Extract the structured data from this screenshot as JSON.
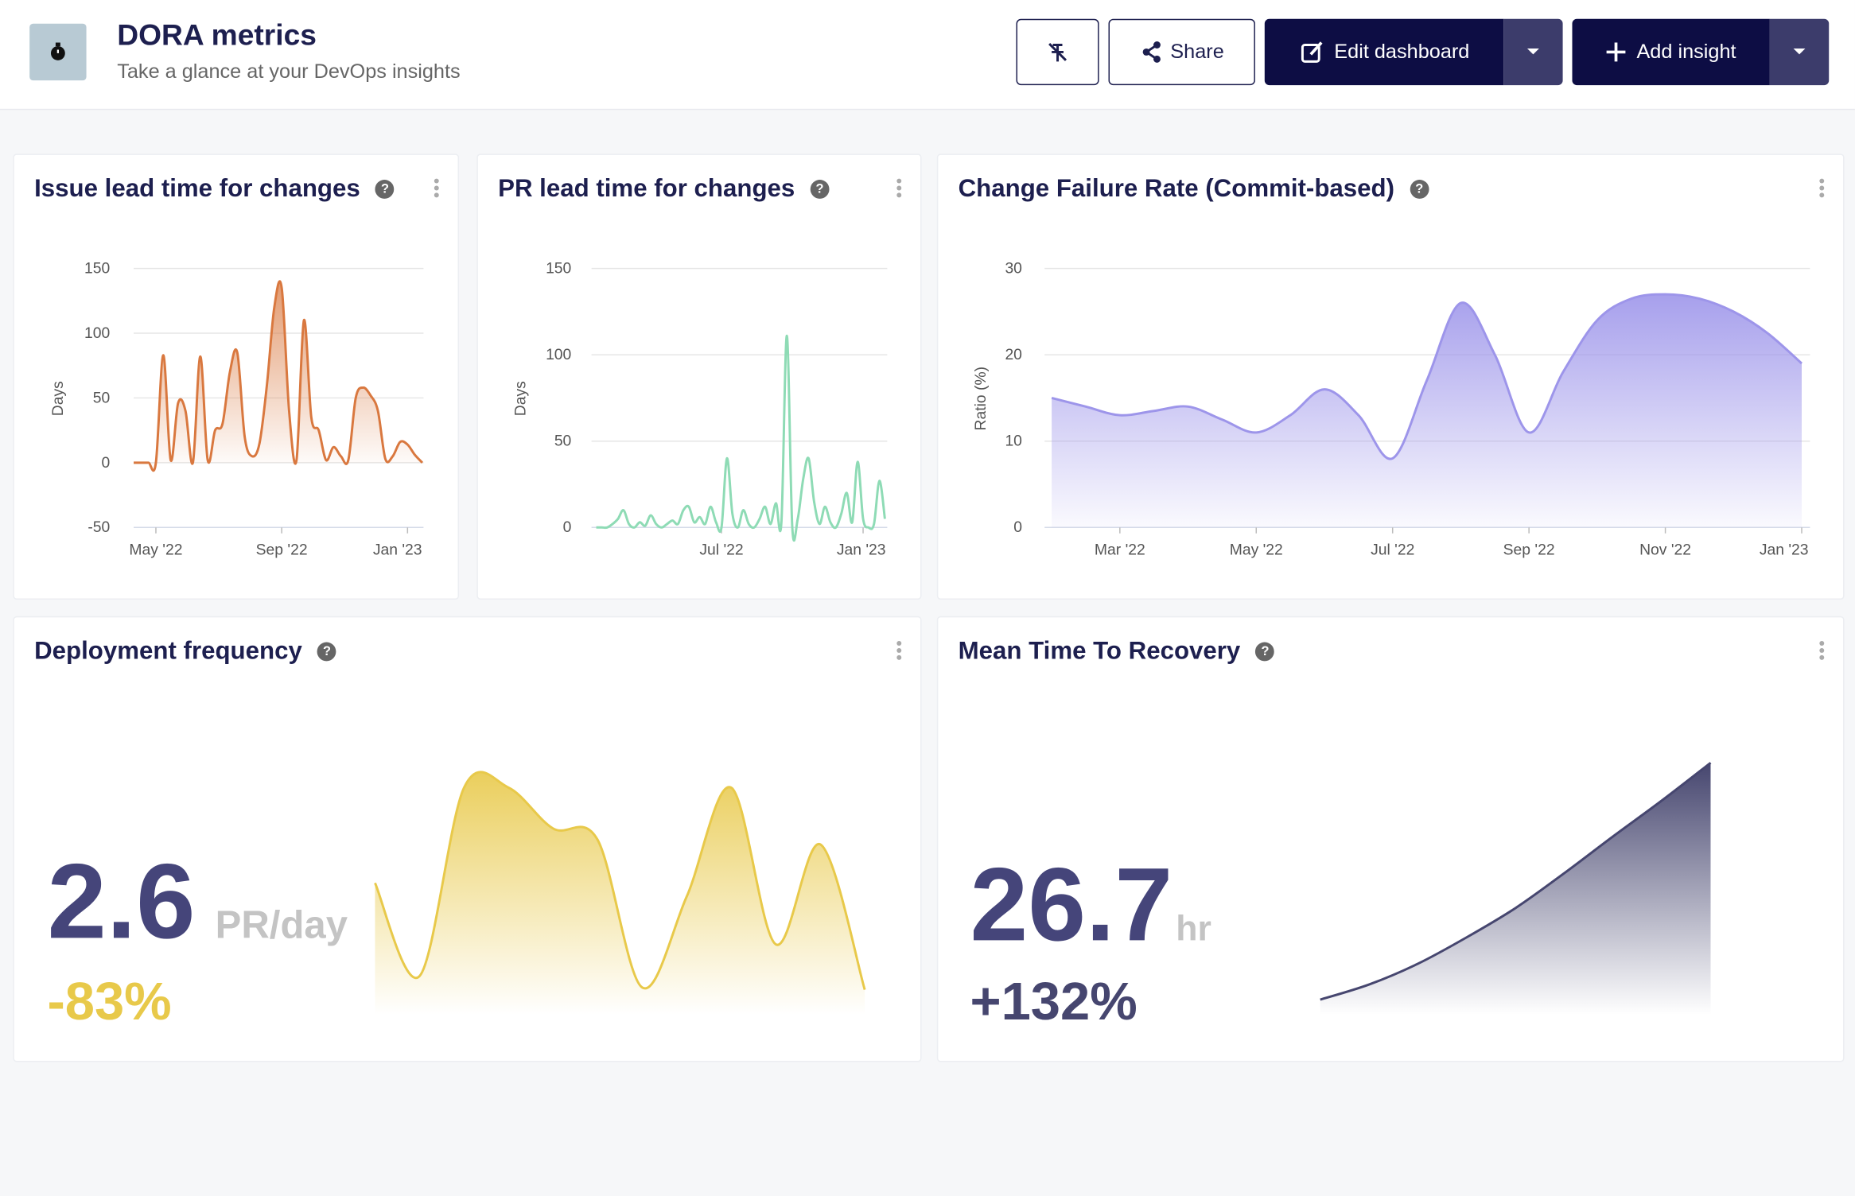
{
  "header": {
    "title": "DORA metrics",
    "subtitle": "Take a glance at your DevOps insights",
    "buttons": [
      "Share",
      "Edit dashboard",
      "Add insight"
    ]
  },
  "chart_data": [
    {
      "type": "area",
      "title": "Issue lead time for changes",
      "y_label": "Days",
      "categories": [
        null,
        null,
        null,
        "May '22",
        null,
        null,
        null,
        null,
        null,
        null,
        null,
        null,
        null,
        null,
        null,
        null,
        null,
        null,
        null,
        null,
        "Sep '22",
        null,
        null,
        null,
        null,
        null,
        null,
        null,
        null,
        null,
        null,
        null,
        null,
        null,
        null,
        null,
        null,
        "Jan '23",
        null,
        null
      ],
      "values": [
        0,
        0,
        0,
        0,
        83,
        2,
        46,
        40,
        0,
        82,
        2,
        25,
        30,
        70,
        85,
        20,
        5,
        15,
        60,
        120,
        135,
        40,
        2,
        110,
        35,
        25,
        2,
        12,
        5,
        2,
        50,
        58,
        52,
        40,
        3,
        5,
        16,
        14,
        6,
        0
      ],
      "color": "#d9783f",
      "ylim": [
        -50,
        150
      ],
      "yticks": [
        -50,
        0,
        50,
        100,
        150
      ],
      "grid": true
    },
    {
      "type": "line",
      "title": "PR lead time for changes",
      "y_label": "Days",
      "categories": [
        null,
        null,
        null,
        null,
        null,
        null,
        null,
        null,
        null,
        null,
        null,
        null,
        null,
        null,
        null,
        null,
        null,
        null,
        null,
        null,
        null,
        null,
        null,
        "Jul '22",
        null,
        null,
        null,
        null,
        null,
        null,
        null,
        null,
        null,
        null,
        null,
        null,
        null,
        null,
        null,
        null,
        null,
        null,
        null,
        null,
        null,
        null,
        null,
        null,
        null,
        "Jan '23",
        null,
        null,
        null,
        null
      ],
      "values": [
        0,
        0,
        0,
        2,
        5,
        10,
        2,
        0,
        3,
        1,
        7,
        2,
        0,
        2,
        4,
        2,
        10,
        12,
        3,
        6,
        2,
        12,
        3,
        0,
        40,
        8,
        0,
        10,
        2,
        0,
        5,
        12,
        2,
        14,
        3,
        111,
        0,
        5,
        28,
        40,
        15,
        2,
        12,
        3,
        0,
        8,
        20,
        3,
        38,
        5,
        0,
        2,
        27,
        5
      ],
      "color": "#8edbb5",
      "ylim": [
        0,
        150
      ],
      "yticks": [
        0,
        50,
        100,
        150
      ],
      "grid": true
    },
    {
      "type": "area",
      "title": "Change Failure Rate (Commit-based)",
      "y_label": "Ratio (%)",
      "categories": [
        null,
        null,
        "Mar '22",
        null,
        null,
        null,
        "May '22",
        null,
        null,
        null,
        "Jul '22",
        null,
        null,
        null,
        "Sep '22",
        null,
        null,
        null,
        "Nov '22",
        null,
        null,
        null,
        "Jan '23"
      ],
      "values": [
        15,
        14,
        13,
        13.5,
        14,
        12.5,
        11,
        13,
        16,
        13,
        8,
        17,
        26,
        20,
        11,
        18,
        24,
        26.5,
        27,
        26.5,
        25,
        22.5,
        19
      ],
      "color": "#9d95ea",
      "ylim": [
        0,
        30
      ],
      "yticks": [
        0,
        10,
        20,
        30
      ],
      "grid": true
    },
    {
      "type": "number",
      "title": "Deployment frequency",
      "value": 2.6,
      "unit": "PR/day",
      "change": "-83%",
      "values": [
        5.8,
        1.7,
        10,
        10,
        8.2,
        7.7,
        1.2,
        5.2,
        10,
        3.1,
        7.5,
        1.1
      ],
      "color": "#e8c94a"
    },
    {
      "type": "number",
      "title": "Mean Time To Recovery",
      "value": 26.7,
      "unit": "hr",
      "change": "+132%",
      "values": [
        1.6,
        3.2,
        5.4,
        8.2,
        11.3,
        15,
        18.9,
        22.7,
        26.7
      ],
      "color": "#46466f"
    }
  ]
}
